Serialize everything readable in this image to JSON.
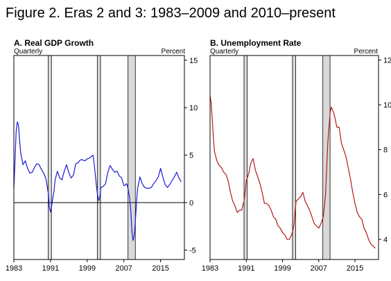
{
  "figure_title": "Figure 2. Eras 2 and 3: 1983–2009 and 2010–present",
  "chart_data": [
    {
      "type": "line",
      "title": "A. Real GDP Growth",
      "frequency_label": "Quarterly",
      "unit_label": "Percent",
      "xlim": [
        1983,
        2020.2
      ],
      "ylim": [
        -6,
        15.5
      ],
      "x_ticks": [
        1983,
        1991,
        1999,
        2007,
        2015
      ],
      "y_ticks": [
        -5,
        0,
        5,
        10,
        15
      ],
      "zero_line": true,
      "recessions": [
        [
          1990.5,
          1991.2
        ],
        [
          2001.2,
          2001.9
        ],
        [
          2007.9,
          2009.5
        ]
      ],
      "series": [
        {
          "color": "#1a1ad6",
          "x": [
            1983.0,
            1983.25,
            1983.5,
            1983.75,
            1984.0,
            1984.25,
            1984.5,
            1985.0,
            1985.5,
            1986.0,
            1986.5,
            1987.0,
            1987.5,
            1988.0,
            1988.5,
            1989.0,
            1989.5,
            1990.0,
            1990.25,
            1990.5,
            1990.75,
            1991.0,
            1991.25,
            1991.5,
            1991.75,
            1992.0,
            1992.5,
            1993.0,
            1993.5,
            1994.0,
            1994.5,
            1995.0,
            1995.5,
            1996.0,
            1996.5,
            1997.0,
            1997.5,
            1998.0,
            1998.5,
            1999.0,
            1999.5,
            2000.0,
            2000.25,
            2000.5,
            2000.75,
            2001.0,
            2001.25,
            2001.5,
            2001.75,
            2002.0,
            2002.5,
            2003.0,
            2003.5,
            2004.0,
            2004.5,
            2005.0,
            2005.5,
            2006.0,
            2006.5,
            2007.0,
            2007.25,
            2007.5,
            2007.75,
            2008.0,
            2008.25,
            2008.5,
            2008.75,
            2009.0,
            2009.25,
            2009.5,
            2009.75,
            2010.0,
            2010.5,
            2011.0,
            2011.5,
            2012.0,
            2012.5,
            2013.0,
            2013.5,
            2014.0,
            2014.5,
            2015.0,
            2015.5,
            2016.0,
            2016.5,
            2017.0,
            2017.5,
            2018.0,
            2018.5,
            2019.0,
            2019.5
          ],
          "values": [
            1.5,
            4.5,
            7.5,
            8.5,
            8.2,
            6.5,
            5.2,
            4.0,
            4.4,
            3.6,
            3.1,
            3.2,
            3.7,
            4.1,
            4.0,
            3.5,
            3.1,
            2.5,
            1.8,
            1.0,
            -0.5,
            -1.0,
            -0.3,
            0.5,
            1.2,
            2.4,
            3.3,
            2.6,
            2.4,
            3.3,
            4.0,
            3.1,
            2.6,
            2.9,
            4.1,
            4.2,
            4.5,
            4.5,
            4.4,
            4.6,
            4.7,
            4.9,
            5.0,
            4.2,
            3.0,
            1.8,
            0.8,
            0.2,
            0.5,
            1.6,
            1.7,
            2.0,
            3.2,
            3.9,
            3.5,
            3.2,
            3.3,
            2.8,
            2.6,
            1.8,
            1.8,
            2.0,
            1.8,
            1.2,
            0.5,
            -0.8,
            -3.0,
            -4.0,
            -3.5,
            -2.0,
            0.0,
            1.5,
            2.7,
            2.0,
            1.6,
            1.5,
            1.5,
            1.6,
            2.0,
            2.3,
            2.7,
            3.6,
            2.7,
            1.9,
            1.6,
            1.9,
            2.3,
            2.7,
            3.2,
            2.6,
            2.2
          ]
        }
      ]
    },
    {
      "type": "line",
      "title": "B. Unemployment Rate",
      "frequency_label": "Quarterly",
      "unit_label": "Percent",
      "xlim": [
        1983,
        2020.2
      ],
      "ylim": [
        3.1,
        12.2
      ],
      "x_ticks": [
        1983,
        1991,
        1999,
        2007,
        2015
      ],
      "y_ticks": [
        4,
        6,
        8,
        10,
        12
      ],
      "zero_line": false,
      "recessions": [
        [
          1990.5,
          1991.2
        ],
        [
          2001.2,
          2001.9
        ],
        [
          2007.9,
          2009.5
        ]
      ],
      "series": [
        {
          "color": "#b31a1a",
          "x": [
            1983.0,
            1983.25,
            1983.5,
            1983.75,
            1984.0,
            1984.5,
            1985.0,
            1985.5,
            1986.0,
            1986.5,
            1987.0,
            1987.5,
            1988.0,
            1988.5,
            1989.0,
            1989.5,
            1990.0,
            1990.5,
            1991.0,
            1991.5,
            1992.0,
            1992.5,
            1993.0,
            1993.5,
            1994.0,
            1994.5,
            1995.0,
            1995.5,
            1996.0,
            1996.5,
            1997.0,
            1997.5,
            1998.0,
            1998.5,
            1999.0,
            1999.5,
            2000.0,
            2000.5,
            2001.0,
            2001.5,
            2002.0,
            2002.5,
            2003.0,
            2003.5,
            2004.0,
            2004.5,
            2005.0,
            2005.5,
            2006.0,
            2006.5,
            2007.0,
            2007.5,
            2008.0,
            2008.5,
            2009.0,
            2009.5,
            2009.75,
            2010.0,
            2010.5,
            2011.0,
            2011.5,
            2012.0,
            2012.5,
            2013.0,
            2013.5,
            2014.0,
            2014.5,
            2015.0,
            2015.5,
            2016.0,
            2016.5,
            2017.0,
            2017.5,
            2018.0,
            2018.5,
            2019.0,
            2019.5
          ],
          "values": [
            10.4,
            10.1,
            9.3,
            8.5,
            7.9,
            7.5,
            7.3,
            7.2,
            7.0,
            6.9,
            6.6,
            6.1,
            5.7,
            5.5,
            5.2,
            5.3,
            5.3,
            5.7,
            6.6,
            6.9,
            7.4,
            7.6,
            7.1,
            6.8,
            6.5,
            6.1,
            5.6,
            5.6,
            5.5,
            5.3,
            5.0,
            4.9,
            4.6,
            4.5,
            4.3,
            4.2,
            4.0,
            4.0,
            4.2,
            4.6,
            5.7,
            5.8,
            5.9,
            6.1,
            5.7,
            5.5,
            5.3,
            5.0,
            4.7,
            4.6,
            4.5,
            4.7,
            5.0,
            6.0,
            8.3,
            9.6,
            9.9,
            9.8,
            9.5,
            9.0,
            9.0,
            8.3,
            8.0,
            7.7,
            7.2,
            6.7,
            6.1,
            5.6,
            5.2,
            5.0,
            4.9,
            4.5,
            4.3,
            4.0,
            3.8,
            3.7,
            3.6
          ]
        }
      ]
    }
  ]
}
